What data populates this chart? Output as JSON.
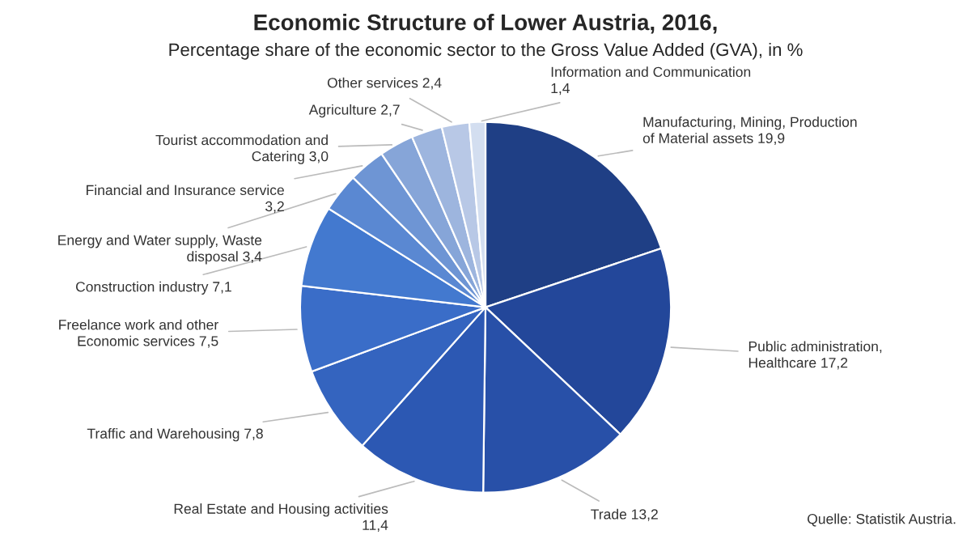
{
  "chart_data": {
    "type": "pie",
    "title": "Economic Structure of Lower Austria, 2016,",
    "subtitle": "Percentage share of the economic sector to the Gross Value Added (GVA), in %",
    "categories": [
      "Manufacturing, Mining, Production\nof Material assets",
      "Public administration,\nHealthcare",
      "Trade",
      "Real Estate and Housing activities\n",
      "Traffic and Warehousing",
      "Freelance work and other\nEconomic services",
      "Construction industry",
      "Energy and Water supply, Waste\ndisposal",
      "Financial and Insurance service\n",
      "Tourist accommodation and\nCatering",
      "Agriculture",
      "Other services",
      "Information and Communication\n"
    ],
    "values": [
      19.9,
      17.2,
      13.2,
      11.4,
      7.8,
      7.5,
      7.1,
      3.4,
      3.2,
      3.0,
      2.7,
      2.4,
      1.4
    ],
    "value_labels": [
      "19,9",
      "17,2",
      "13,2",
      "11,4",
      "7,8",
      "7,5",
      "7,1",
      "3,4",
      "3,2",
      "3,0",
      "2,7",
      "2,4",
      "1,4"
    ],
    "colors": [
      "#1f3f85",
      "#23479a",
      "#2850a8",
      "#2c58b3",
      "#3464bf",
      "#3a6dc8",
      "#4379cf",
      "#5a88d2",
      "#6e95d4",
      "#86a5d8",
      "#9db5de",
      "#b8c8e6",
      "#d3def0"
    ],
    "annotations": [
      "Quelle: Statistik Austria."
    ]
  }
}
